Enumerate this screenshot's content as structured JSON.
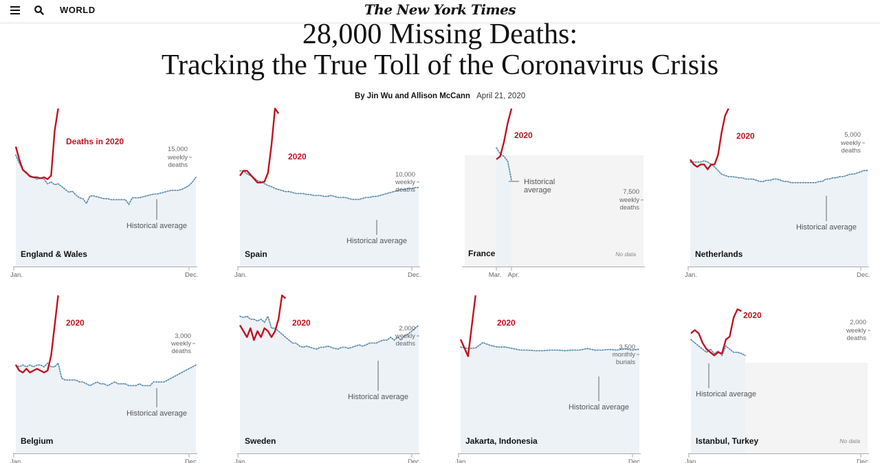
{
  "header": {
    "section": "WORLD",
    "logo": "The New York Times",
    "menu_icon": "menu-icon",
    "search_icon": "search-icon"
  },
  "article": {
    "headline_line1": "28,000 Missing Deaths:",
    "headline_line2": "Tracking the True Toll of the Coronavirus Crisis",
    "byline": "By Jin Wu and Allison McCann",
    "date": "April 21, 2020"
  },
  "colors": {
    "line_2020": "#c1121f",
    "historical": "#5f8fb0",
    "area_fill": "#edf2f7",
    "nodata_fill": "#f4f4f4"
  },
  "chart_data": [
    {
      "type": "line",
      "title": "England & Wales",
      "series_label": "Deaths in 2020",
      "unit_label": [
        "15,000",
        "weekly",
        "deaths"
      ],
      "y_ref": 15000,
      "ylim": [
        0,
        17000
      ],
      "x_ticks": [
        "Jan.",
        "Dec."
      ],
      "annotation": "Historical average",
      "x_start_week": 1,
      "series": [
        {
          "name": "2020",
          "values": [
            12900,
            11500,
            10400,
            10100,
            9700,
            9600,
            9600,
            9500,
            9600,
            9400,
            9800,
            14600,
            17000
          ]
        },
        {
          "name": "Historical average",
          "values": [
            12000,
            11100,
            10400,
            10000,
            9800,
            9600,
            9400,
            9500,
            9400,
            8900,
            9100,
            8800,
            8900,
            8600,
            8300,
            8000,
            8100,
            7700,
            7400,
            7300,
            6800,
            7600,
            7600,
            7500,
            7400,
            7300,
            7300,
            7200,
            7200,
            7200,
            7200,
            7200,
            6700,
            7400,
            7400,
            7400,
            7500,
            7600,
            7700,
            7800,
            7800,
            7900,
            8000,
            8100,
            8200,
            8200,
            8200,
            8300,
            8500,
            8700,
            9100,
            9600
          ]
        }
      ]
    },
    {
      "type": "line",
      "title": "Spain",
      "series_label": "2020",
      "unit_label": [
        "10,000",
        "weekly",
        "deaths"
      ],
      "y_ref": 10000,
      "ylim": [
        0,
        16000
      ],
      "x_ticks": [
        "Jan.",
        "Dec."
      ],
      "annotation": "Historical average",
      "x_start_week": 1,
      "series": [
        {
          "name": "2020",
          "values": [
            9200,
            9700,
            9700,
            9300,
            8900,
            8500,
            8500,
            8600,
            9500,
            12300,
            16000,
            15500
          ]
        },
        {
          "name": "Historical average",
          "values": [
            9700,
            9700,
            9400,
            9200,
            9000,
            8700,
            8600,
            8400,
            8200,
            8100,
            7900,
            7800,
            7700,
            7600,
            7600,
            7500,
            7400,
            7400,
            7400,
            7300,
            7300,
            7200,
            7200,
            7200,
            7100,
            7100,
            7200,
            7100,
            7000,
            7000,
            7000,
            6900,
            6800,
            6800,
            6800,
            6900,
            7000,
            7000,
            7100,
            7100,
            7200,
            7300,
            7400,
            7500,
            7600,
            7700,
            7800,
            7800,
            7900,
            7900,
            8000,
            8000
          ]
        }
      ]
    },
    {
      "type": "line",
      "title": "France",
      "series_label": "2020",
      "unit_label": [
        "7,500",
        "weekly",
        "deaths"
      ],
      "y_ref": 7500,
      "ylim": [
        0,
        16500
      ],
      "x_ticks": [
        "Mar.",
        "Apr."
      ],
      "annotation": "Historical average",
      "no_data": "No data",
      "x_start_week": 9,
      "series": [
        {
          "name": "2020",
          "values": [
            11200,
            11500,
            13000,
            15000,
            16500
          ]
        },
        {
          "name": "Historical average",
          "values": [
            12400,
            11800,
            11500,
            11000,
            9000
          ]
        }
      ]
    },
    {
      "type": "line",
      "title": "Netherlands",
      "series_label": "2020",
      "unit_label": [
        "5,000",
        "weekly",
        "deaths"
      ],
      "y_ref": 5000,
      "ylim": [
        0,
        6500
      ],
      "x_ticks": [
        "Jan.",
        "Dec."
      ],
      "annotation": "Historical average",
      "x_start_week": 1,
      "series": [
        {
          "name": "2020",
          "values": [
            4400,
            4200,
            4100,
            4200,
            4200,
            4000,
            4200,
            4200,
            4600,
            5500,
            6200,
            6500
          ]
        },
        {
          "name": "Historical average",
          "values": [
            4300,
            4300,
            4300,
            4300,
            4350,
            4300,
            4200,
            4100,
            3950,
            3800,
            3750,
            3700,
            3700,
            3680,
            3650,
            3650,
            3600,
            3600,
            3600,
            3550,
            3500,
            3500,
            3550,
            3550,
            3600,
            3600,
            3550,
            3500,
            3500,
            3450,
            3450,
            3450,
            3450,
            3450,
            3450,
            3450,
            3450,
            3500,
            3500,
            3600,
            3600,
            3650,
            3650,
            3700,
            3700,
            3750,
            3800,
            3800,
            3850,
            3900,
            3950,
            3950
          ]
        }
      ]
    },
    {
      "type": "line",
      "title": "Belgium",
      "series_label": "2020",
      "unit_label": [
        "3,000",
        "weekly",
        "deaths"
      ],
      "y_ref": 3000,
      "ylim": [
        0,
        4200
      ],
      "x_ticks": [
        "Jan.",
        "Dec."
      ],
      "annotation": "Historical average",
      "x_start_week": 1,
      "series": [
        {
          "name": "2020",
          "values": [
            2350,
            2200,
            2150,
            2250,
            2150,
            2200,
            2250,
            2200,
            2150,
            2200,
            2600,
            3400,
            4200
          ]
        },
        {
          "name": "Historical average",
          "values": [
            2350,
            2300,
            2350,
            2300,
            2350,
            2300,
            2350,
            2350,
            2300,
            2400,
            2300,
            2300,
            2400,
            2000,
            1950,
            1950,
            1950,
            1950,
            1900,
            1900,
            1850,
            1800,
            1850,
            1900,
            1850,
            1850,
            1800,
            1850,
            1900,
            1850,
            1850,
            1850,
            1800,
            1800,
            1800,
            1850,
            1800,
            1800,
            1800,
            1900,
            1900,
            1900,
            1900,
            1950,
            2000,
            2050,
            2100,
            2150,
            2200,
            2250,
            2300,
            2350
          ]
        }
      ]
    },
    {
      "type": "line",
      "title": "Sweden",
      "series_label": "2020",
      "unit_label": [
        "2,000",
        "weekly",
        "deaths"
      ],
      "y_ref": 2000,
      "ylim": [
        0,
        2650
      ],
      "x_ticks": [
        "Jan.",
        "Dec."
      ],
      "annotation": "Historical average",
      "x_start_week": 1,
      "series": [
        {
          "name": "2020",
          "values": [
            2150,
            2050,
            1950,
            2100,
            1900,
            2050,
            1950,
            2100,
            2050,
            1950,
            2050,
            2250,
            2650,
            2600
          ]
        },
        {
          "name": "Historical average",
          "values": [
            2300,
            2280,
            2300,
            2250,
            2250,
            2220,
            2250,
            2200,
            2300,
            2100,
            2100,
            2050,
            2000,
            1950,
            1900,
            1850,
            1850,
            1800,
            1780,
            1800,
            1780,
            1760,
            1750,
            1780,
            1780,
            1800,
            1780,
            1760,
            1750,
            1780,
            1780,
            1760,
            1780,
            1800,
            1820,
            1800,
            1820,
            1850,
            1850,
            1850,
            1880,
            1900,
            1900,
            1950,
            1900,
            1950,
            1900,
            1980,
            2000,
            2050,
            2100,
            2150
          ]
        }
      ]
    },
    {
      "type": "line",
      "title": "Jakarta, Indonesia",
      "series_label": "2020",
      "unit_label": [
        "3,500",
        "monthly",
        "burials"
      ],
      "y_ref": 3500,
      "ylim": [
        0,
        5200
      ],
      "x_ticks": [
        "Jan.",
        "Dec."
      ],
      "annotation": "Historical average",
      "x_start_week": 1,
      "series": [
        {
          "name": "2020",
          "values": [
            3750,
            3200,
            5200
          ]
        },
        {
          "name": "Historical average",
          "values": [
            3500,
            3450,
            3470,
            3650,
            3550,
            3500,
            3500,
            3450,
            3400,
            3400,
            3380,
            3380,
            3400,
            3400,
            3380,
            3400,
            3400,
            3450,
            3400,
            3400,
            3420,
            3400,
            3440,
            3400,
            3430
          ]
        }
      ]
    },
    {
      "type": "line",
      "title": "Istanbul, Turkey",
      "series_label": "2020",
      "unit_label": [
        "2,000",
        "weekly",
        "deaths"
      ],
      "y_ref": 2000,
      "ylim": [
        0,
        2500
      ],
      "x_ticks": [
        "Jan.",
        "Dec."
      ],
      "annotation": "Historical average",
      "no_data": "No data",
      "x_start_week": 1,
      "series": [
        {
          "name": "2020",
          "values": [
            1900,
            1950,
            1900,
            1750,
            1650,
            1600,
            1550,
            1600,
            1580,
            1800,
            1850,
            2150,
            2280,
            2250
          ]
        },
        {
          "name": "Historical average",
          "values": [
            1800,
            1750,
            1700,
            1650,
            1600,
            1650,
            1580,
            1620,
            1550,
            1700,
            1650,
            1600,
            1600,
            1580,
            1550
          ]
        }
      ]
    }
  ]
}
